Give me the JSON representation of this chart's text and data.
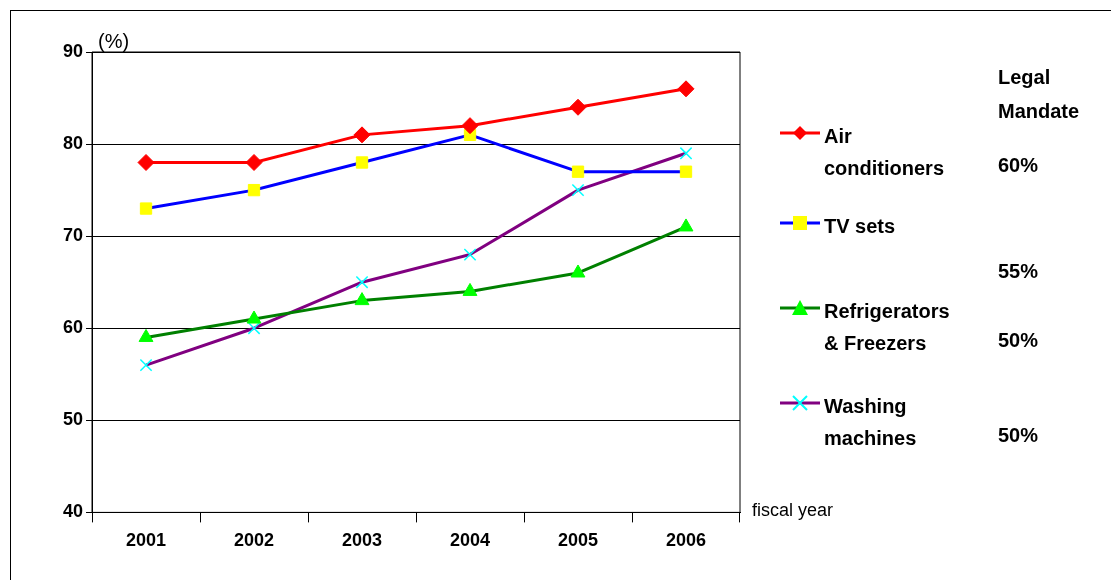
{
  "chart_data": {
    "type": "line",
    "ylabel": "(%)",
    "xlabel": "fiscal year",
    "categories": [
      "2001",
      "2002",
      "2003",
      "2004",
      "2005",
      "2006"
    ],
    "series": [
      {
        "name": "Air conditioners",
        "color": "#ff0000",
        "marker": "diamond",
        "colors": [
          "#ff0000",
          "#ff0000",
          "#ff0000",
          "#ff0000",
          "#ff0000",
          "#ff0000"
        ],
        "values": [
          78,
          78,
          81,
          82,
          84,
          86
        ]
      },
      {
        "name": "TV sets",
        "color": "#0000ff",
        "marker": "square",
        "colors": [
          "#ffff00",
          "#ffff00",
          "#ffff00",
          "#ffff00",
          "#ffff00",
          "#ffff00"
        ],
        "values": [
          73,
          75,
          78,
          81,
          77,
          77
        ]
      },
      {
        "name": "Refrigerators & Freezers",
        "color": "#008000",
        "marker": "triangle",
        "colors": [
          "#00ff00",
          "#00ff00",
          "#00ff00",
          "#00ff00",
          "#00ff00",
          "#00ff00"
        ],
        "values": [
          59,
          61,
          63,
          64,
          66,
          71
        ]
      },
      {
        "name": "Washing machines",
        "color": "#800080",
        "marker": "cross",
        "colors": [
          "#00ffff",
          "#00ffff",
          "#00ffff",
          "#00ffff",
          "#00ffff",
          "#00ffff"
        ],
        "values": [
          56,
          60,
          65,
          68,
          75,
          79
        ]
      }
    ],
    "ylim": [
      40,
      90
    ],
    "yticks": [
      40,
      50,
      60,
      70,
      80,
      90
    ],
    "grid": "y",
    "legend": "right",
    "line_style": "solid",
    "annotations": [
      "Legal Mandate",
      "60%",
      "55%",
      "50%",
      "50%"
    ]
  }
}
